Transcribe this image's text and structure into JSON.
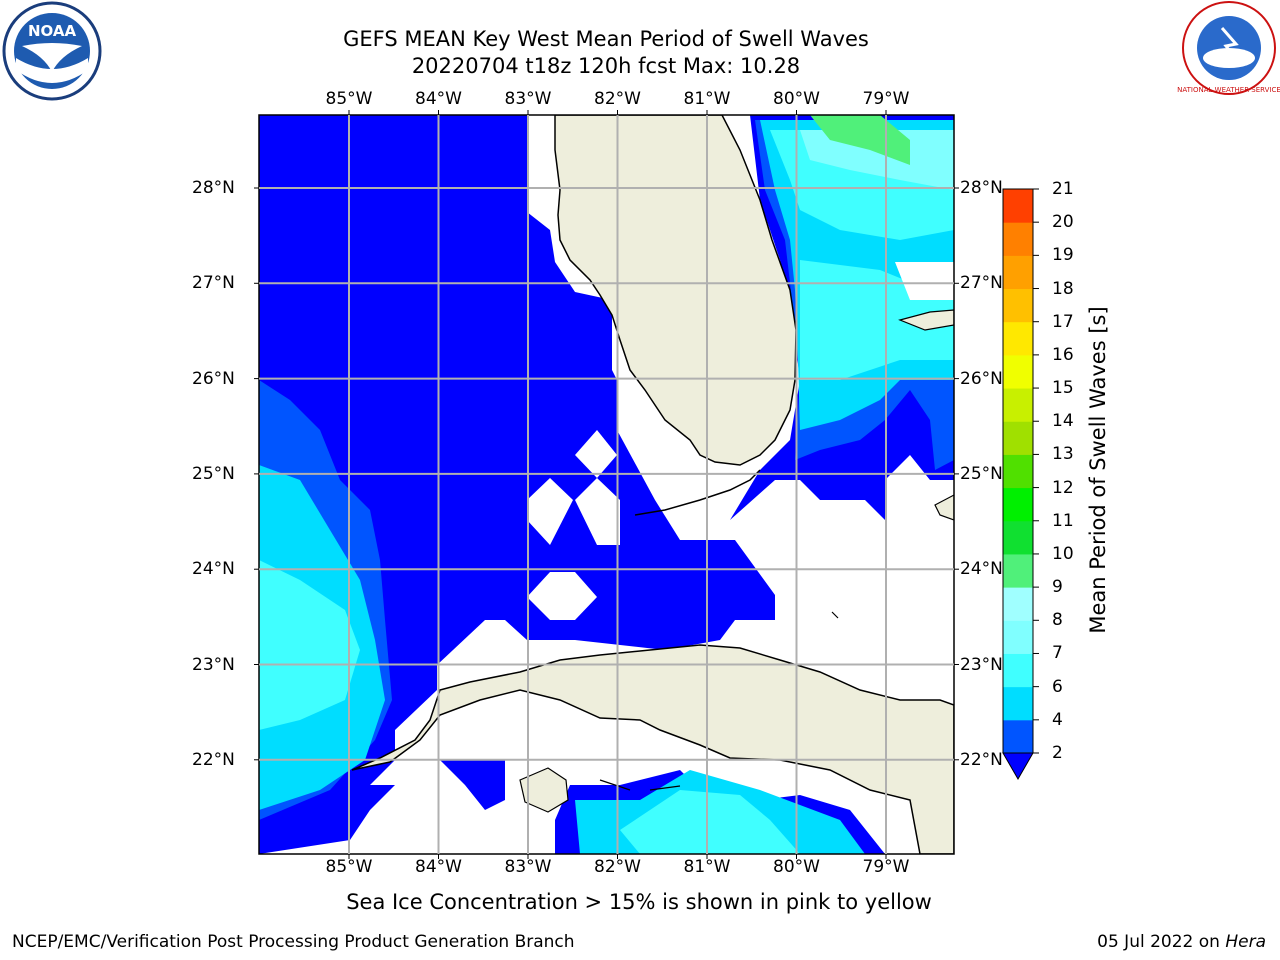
{
  "title": {
    "line1": "GEFS MEAN Key West Mean Period of Swell Waves",
    "line2": "20220704 t18z 120h fcst   Max: 10.28"
  },
  "map": {
    "lon_labels": [
      "85°W",
      "84°W",
      "83°W",
      "82°W",
      "81°W",
      "80°W",
      "79°W"
    ],
    "lon_values": [
      -85,
      -84,
      -83,
      -82,
      -81,
      -80,
      -79
    ],
    "lat_labels": [
      "28°N",
      "27°N",
      "26°N",
      "25°N",
      "24°N",
      "23°N",
      "22°N"
    ],
    "lat_values": [
      28,
      27,
      26,
      25,
      24,
      23,
      22
    ],
    "land_color": "#eeeedc",
    "ocean_missing_color": "#ffffff",
    "grid": true
  },
  "colorbar": {
    "label": "Mean Period of Swell Waves [s]",
    "ticks": [
      "2",
      "4",
      "6",
      "7",
      "8",
      "9",
      "10",
      "11",
      "12",
      "13",
      "14",
      "15",
      "16",
      "17",
      "18",
      "19",
      "20",
      "21"
    ],
    "colors": [
      "#0055ff",
      "#00ddff",
      "#40ffff",
      "#80ffff",
      "#a0ffff",
      "#50f07a",
      "#10e030",
      "#00f000",
      "#50e000",
      "#a0e000",
      "#c8f000",
      "#f0ff00",
      "#ffe800",
      "#ffc000",
      "#ffa000",
      "#ff8000",
      "#ff4000",
      "#ff1000",
      "#ff0000"
    ],
    "under_color": "#0000ff"
  },
  "logos": {
    "noaa_text": "NOAA",
    "nws_text": "NATIONAL WEATHER SERVICE"
  },
  "footnote": "Sea Ice Concentration > 15% is shown in pink to yellow",
  "credit_left": "NCEP/EMC/Verification Post Processing Product Generation Branch",
  "credit_date": "05 Jul 2022 on",
  "credit_host": "Hera"
}
